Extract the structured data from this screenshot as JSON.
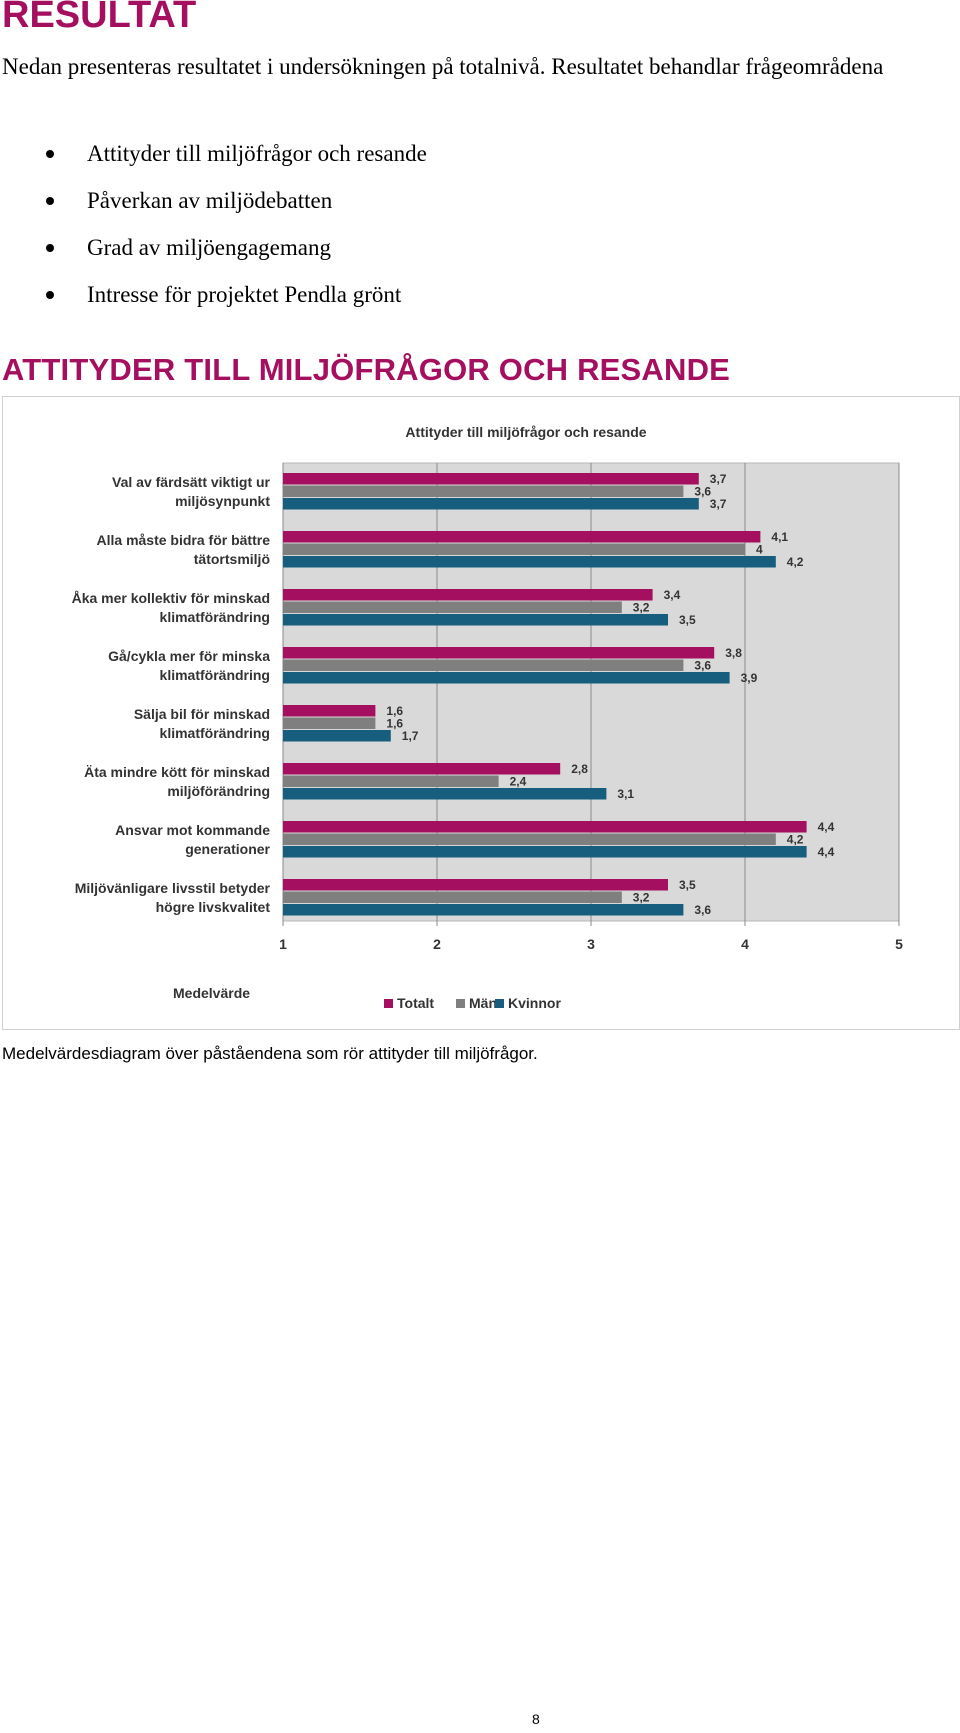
{
  "heading": "RESULTAT",
  "intro": "Nedan presenteras resultatet i undersökningen på totalnivå. Resultatet behandlar frågeområdena",
  "bullets": [
    "Attityder till miljöfrågor och resande",
    "Påverkan av miljödebatten",
    "Grad av miljöengagemang",
    "Intresse för projektet Pendla grönt"
  ],
  "section_heading": "ATTITYDER TILL MILJÖFRÅGOR OCH RESANDE",
  "caption": "Medelvärdesdiagram över påståendena som rör attityder till miljöfrågor.",
  "page_number": "8",
  "colors": {
    "accent": "#a50f5f",
    "totalt": "#a50f5f",
    "man": "#7f7f7f",
    "kvinnor": "#175e7e",
    "plot_bg": "#d9d9d9"
  },
  "chart_data": {
    "type": "bar",
    "orientation": "horizontal",
    "title": "Attityder till miljöfrågor och resande",
    "xlabel": "Medelvärde",
    "xlim": [
      1,
      5
    ],
    "xticks": [
      "1",
      "2",
      "3",
      "4",
      "5"
    ],
    "legend_position": "bottom",
    "categories": [
      [
        "Val av färdsätt viktigt ur",
        "miljösynpunkt"
      ],
      [
        "Alla måste bidra för bättre",
        "tätortsmiljö"
      ],
      [
        "Åka mer kollektiv för minskad",
        "klimatförändring"
      ],
      [
        "Gå/cykla mer för minska",
        "klimatförändring"
      ],
      [
        "Sälja bil för minskad",
        "klimatförändring"
      ],
      [
        "Äta mindre kött för minskad",
        "miljöförändring"
      ],
      [
        "Ansvar mot kommande",
        "generationer"
      ],
      [
        "Miljövänligare livsstil betyder",
        "högre livskvalitet"
      ]
    ],
    "series": [
      {
        "name": "Totalt",
        "values": [
          3.7,
          4.1,
          3.4,
          3.8,
          1.6,
          2.8,
          4.4,
          3.5
        ],
        "labels": [
          "3,7",
          "4,1",
          "3,4",
          "3,8",
          "1,6",
          "2,8",
          "4,4",
          "3,5"
        ]
      },
      {
        "name": "Män",
        "values": [
          3.6,
          4.0,
          3.2,
          3.6,
          1.6,
          2.4,
          4.2,
          3.2
        ],
        "labels": [
          "3,6",
          "4",
          "3,2",
          "3,6",
          "1,6",
          "2,4",
          "4,2",
          "3,2"
        ]
      },
      {
        "name": "Kvinnor",
        "values": [
          3.7,
          4.2,
          3.5,
          3.9,
          1.7,
          3.1,
          4.4,
          3.6
        ],
        "labels": [
          "3,7",
          "4,2",
          "3,5",
          "3,9",
          "1,7",
          "3,1",
          "4,4",
          "3,6"
        ]
      }
    ]
  }
}
